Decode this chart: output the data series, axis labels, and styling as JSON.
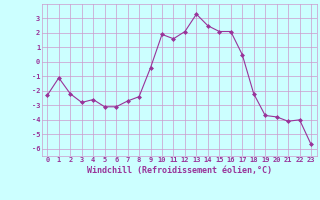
{
  "x": [
    0,
    1,
    2,
    3,
    4,
    5,
    6,
    7,
    8,
    9,
    10,
    11,
    12,
    13,
    14,
    15,
    16,
    17,
    18,
    19,
    20,
    21,
    22,
    23
  ],
  "y": [
    -2.3,
    -1.1,
    -2.2,
    -2.8,
    -2.6,
    -3.1,
    -3.1,
    -2.7,
    -2.4,
    -0.4,
    1.9,
    1.6,
    2.1,
    3.3,
    2.5,
    2.1,
    2.1,
    0.5,
    -2.2,
    -3.7,
    -3.8,
    -4.1,
    -4.0,
    -5.7
  ],
  "line_color": "#993399",
  "marker": "D",
  "marker_size": 2.0,
  "bg_color": "#ccffff",
  "grid_color": "#cc99cc",
  "xlabel": "Windchill (Refroidissement éolien,°C)",
  "xlabel_color": "#993399",
  "tick_color": "#993399",
  "ylim": [
    -6.5,
    4.0
  ],
  "xlim": [
    -0.5,
    23.5
  ],
  "yticks": [
    -6,
    -5,
    -4,
    -3,
    -2,
    -1,
    0,
    1,
    2,
    3
  ],
  "xticks": [
    0,
    1,
    2,
    3,
    4,
    5,
    6,
    7,
    8,
    9,
    10,
    11,
    12,
    13,
    14,
    15,
    16,
    17,
    18,
    19,
    20,
    21,
    22,
    23
  ],
  "tick_fontsize": 5.0,
  "xlabel_fontsize": 6.0,
  "linewidth": 0.8
}
